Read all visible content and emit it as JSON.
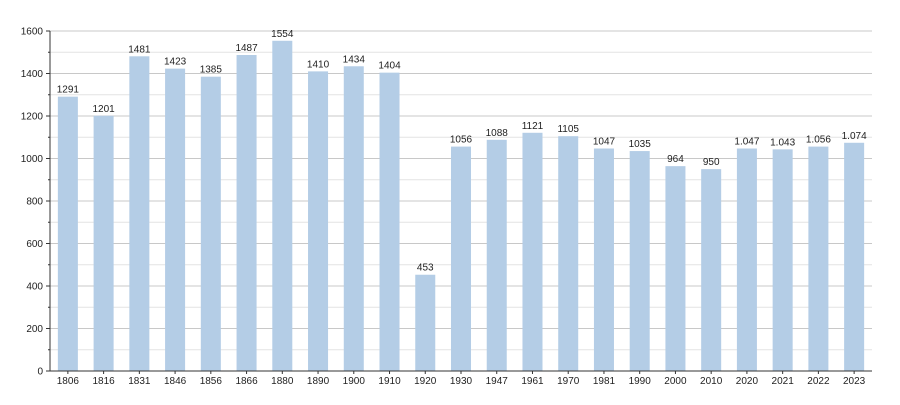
{
  "chart_data": {
    "type": "bar",
    "title": "",
    "xlabel": "",
    "ylabel": "",
    "ylim": [
      0,
      1600
    ],
    "yticks": [
      "0",
      "200",
      "400",
      "600",
      "800",
      "1000",
      "1200",
      "1400",
      "1600"
    ],
    "grid": true,
    "legend": "none",
    "bar_color": "#b4cde6",
    "grid_color": "#c8c8c8",
    "categories": [
      "1806",
      "1816",
      "1831",
      "1846",
      "1856",
      "1866",
      "1880",
      "1890",
      "1900",
      "1910",
      "1920",
      "1930",
      "1947",
      "1961",
      "1970",
      "1981",
      "1990",
      "2000",
      "2010",
      "2020",
      "2021",
      "2022",
      "2023"
    ],
    "values": [
      1291,
      1201,
      1481,
      1423,
      1385,
      1487,
      1554,
      1410,
      1434,
      1404,
      453,
      1056,
      1088,
      1121,
      1105,
      1047,
      1035,
      964,
      950,
      1047,
      1043,
      1056,
      1074
    ],
    "data_labels": [
      "1291",
      "1201",
      "1481",
      "1423",
      "1385",
      "1487",
      "1554",
      "1410",
      "1434",
      "1404",
      "453",
      "1056",
      "1088",
      "1121",
      "1105",
      "1047",
      "1035",
      "964",
      "950",
      "1.047",
      "1.043",
      "1.056",
      "1.074"
    ]
  }
}
